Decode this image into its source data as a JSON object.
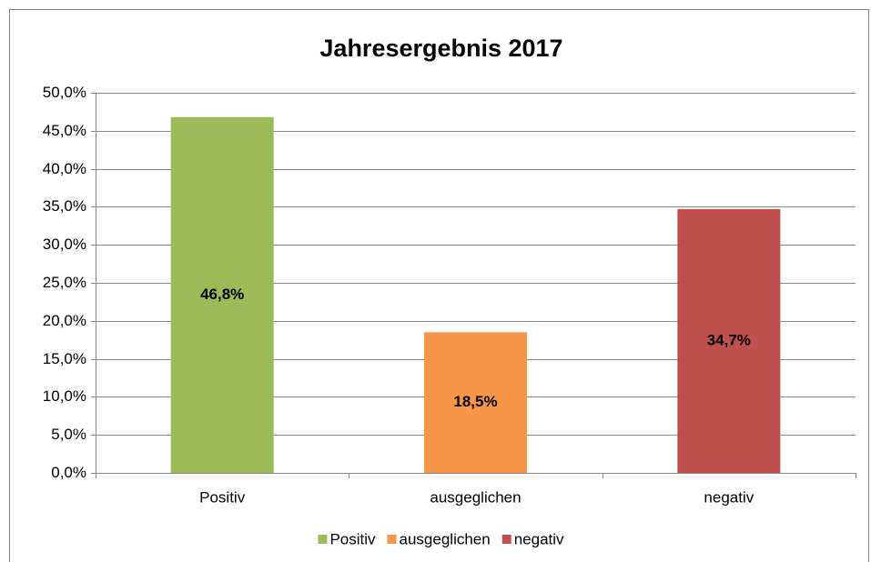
{
  "chart_data": {
    "type": "bar",
    "title": "Jahresergebnis 2017",
    "categories": [
      "Positiv",
      "ausgeglichen",
      "negativ"
    ],
    "values": [
      46.8,
      18.5,
      34.7
    ],
    "value_labels": [
      "46,8%",
      "18,5%",
      "34,7%"
    ],
    "colors": [
      "#9bbb59",
      "#f79646",
      "#c0504d"
    ],
    "ylim": [
      0,
      50
    ],
    "yticks": [
      {
        "value": 0,
        "label": "0,0%"
      },
      {
        "value": 5,
        "label": "5,0%"
      },
      {
        "value": 10,
        "label": "10,0%"
      },
      {
        "value": 15,
        "label": "15,0%"
      },
      {
        "value": 20,
        "label": "20,0%"
      },
      {
        "value": 25,
        "label": "25,0%"
      },
      {
        "value": 30,
        "label": "30,0%"
      },
      {
        "value": 35,
        "label": "35,0%"
      },
      {
        "value": 40,
        "label": "40,0%"
      },
      {
        "value": 45,
        "label": "45,0%"
      },
      {
        "value": 50,
        "label": "50,0%"
      }
    ],
    "grid": true,
    "legend": "bottom"
  }
}
